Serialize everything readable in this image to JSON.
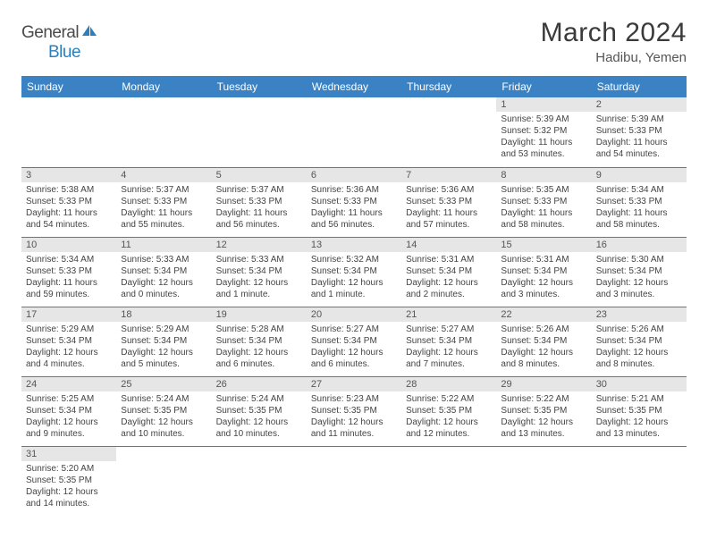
{
  "brand": {
    "part1": "General",
    "part2": "Blue"
  },
  "title": "March 2024",
  "subtitle": "Hadibu, Yemen",
  "colors": {
    "header_bg": "#3b82c4",
    "header_fg": "#ffffff",
    "daynum_bg": "#e6e6e6",
    "rule": "#3b82c4",
    "text": "#444444",
    "logo_blue": "#2a7fbf"
  },
  "fonts": {
    "title_size": 30,
    "subtitle_size": 15,
    "dayhead_size": 12,
    "body_size": 10
  },
  "daynames": [
    "Sunday",
    "Monday",
    "Tuesday",
    "Wednesday",
    "Thursday",
    "Friday",
    "Saturday"
  ],
  "weeks": [
    [
      null,
      null,
      null,
      null,
      null,
      {
        "n": "1",
        "sr": "5:39 AM",
        "ss": "5:32 PM",
        "dl": "11 hours and 53 minutes."
      },
      {
        "n": "2",
        "sr": "5:39 AM",
        "ss": "5:33 PM",
        "dl": "11 hours and 54 minutes."
      }
    ],
    [
      {
        "n": "3",
        "sr": "5:38 AM",
        "ss": "5:33 PM",
        "dl": "11 hours and 54 minutes."
      },
      {
        "n": "4",
        "sr": "5:37 AM",
        "ss": "5:33 PM",
        "dl": "11 hours and 55 minutes."
      },
      {
        "n": "5",
        "sr": "5:37 AM",
        "ss": "5:33 PM",
        "dl": "11 hours and 56 minutes."
      },
      {
        "n": "6",
        "sr": "5:36 AM",
        "ss": "5:33 PM",
        "dl": "11 hours and 56 minutes."
      },
      {
        "n": "7",
        "sr": "5:36 AM",
        "ss": "5:33 PM",
        "dl": "11 hours and 57 minutes."
      },
      {
        "n": "8",
        "sr": "5:35 AM",
        "ss": "5:33 PM",
        "dl": "11 hours and 58 minutes."
      },
      {
        "n": "9",
        "sr": "5:34 AM",
        "ss": "5:33 PM",
        "dl": "11 hours and 58 minutes."
      }
    ],
    [
      {
        "n": "10",
        "sr": "5:34 AM",
        "ss": "5:33 PM",
        "dl": "11 hours and 59 minutes."
      },
      {
        "n": "11",
        "sr": "5:33 AM",
        "ss": "5:34 PM",
        "dl": "12 hours and 0 minutes."
      },
      {
        "n": "12",
        "sr": "5:33 AM",
        "ss": "5:34 PM",
        "dl": "12 hours and 1 minute."
      },
      {
        "n": "13",
        "sr": "5:32 AM",
        "ss": "5:34 PM",
        "dl": "12 hours and 1 minute."
      },
      {
        "n": "14",
        "sr": "5:31 AM",
        "ss": "5:34 PM",
        "dl": "12 hours and 2 minutes."
      },
      {
        "n": "15",
        "sr": "5:31 AM",
        "ss": "5:34 PM",
        "dl": "12 hours and 3 minutes."
      },
      {
        "n": "16",
        "sr": "5:30 AM",
        "ss": "5:34 PM",
        "dl": "12 hours and 3 minutes."
      }
    ],
    [
      {
        "n": "17",
        "sr": "5:29 AM",
        "ss": "5:34 PM",
        "dl": "12 hours and 4 minutes."
      },
      {
        "n": "18",
        "sr": "5:29 AM",
        "ss": "5:34 PM",
        "dl": "12 hours and 5 minutes."
      },
      {
        "n": "19",
        "sr": "5:28 AM",
        "ss": "5:34 PM",
        "dl": "12 hours and 6 minutes."
      },
      {
        "n": "20",
        "sr": "5:27 AM",
        "ss": "5:34 PM",
        "dl": "12 hours and 6 minutes."
      },
      {
        "n": "21",
        "sr": "5:27 AM",
        "ss": "5:34 PM",
        "dl": "12 hours and 7 minutes."
      },
      {
        "n": "22",
        "sr": "5:26 AM",
        "ss": "5:34 PM",
        "dl": "12 hours and 8 minutes."
      },
      {
        "n": "23",
        "sr": "5:26 AM",
        "ss": "5:34 PM",
        "dl": "12 hours and 8 minutes."
      }
    ],
    [
      {
        "n": "24",
        "sr": "5:25 AM",
        "ss": "5:34 PM",
        "dl": "12 hours and 9 minutes."
      },
      {
        "n": "25",
        "sr": "5:24 AM",
        "ss": "5:35 PM",
        "dl": "12 hours and 10 minutes."
      },
      {
        "n": "26",
        "sr": "5:24 AM",
        "ss": "5:35 PM",
        "dl": "12 hours and 10 minutes."
      },
      {
        "n": "27",
        "sr": "5:23 AM",
        "ss": "5:35 PM",
        "dl": "12 hours and 11 minutes."
      },
      {
        "n": "28",
        "sr": "5:22 AM",
        "ss": "5:35 PM",
        "dl": "12 hours and 12 minutes."
      },
      {
        "n": "29",
        "sr": "5:22 AM",
        "ss": "5:35 PM",
        "dl": "12 hours and 13 minutes."
      },
      {
        "n": "30",
        "sr": "5:21 AM",
        "ss": "5:35 PM",
        "dl": "12 hours and 13 minutes."
      }
    ],
    [
      {
        "n": "31",
        "sr": "5:20 AM",
        "ss": "5:35 PM",
        "dl": "12 hours and 14 minutes."
      },
      null,
      null,
      null,
      null,
      null,
      null
    ]
  ],
  "labels": {
    "sunrise": "Sunrise:",
    "sunset": "Sunset:",
    "daylight": "Daylight:"
  }
}
